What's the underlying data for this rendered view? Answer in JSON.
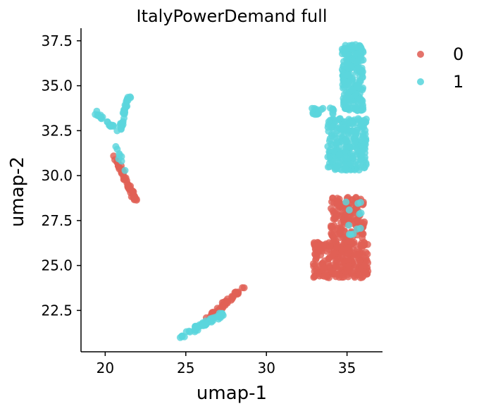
{
  "chart_data": {
    "type": "scatter",
    "title": "ItalyPowerDemand full",
    "xlabel": "umap-1",
    "ylabel": "umap-2",
    "xlim": [
      18.5,
      37.2
    ],
    "ylim": [
      20.2,
      38.2
    ],
    "x_ticks": [
      20,
      25,
      30,
      35
    ],
    "y_ticks": [
      22.5,
      25.0,
      27.5,
      30.0,
      32.5,
      35.0,
      37.5
    ],
    "x_tick_labels": [
      "20",
      "25",
      "30",
      "35"
    ],
    "y_tick_labels": [
      "22.5",
      "25.0",
      "27.5",
      "30.0",
      "32.5",
      "35.0",
      "37.5"
    ],
    "grid": false,
    "legend_position": "top-right",
    "series": [
      {
        "name": "0",
        "color": "#e06056",
        "clusters": [
          {
            "label": "left-strand",
            "x": [
              20.6,
              21.9
            ],
            "y": [
              28.6,
              31.0
            ],
            "count": 60
          },
          {
            "label": "bottom-diagonal",
            "x": [
              26.3,
              28.6
            ],
            "y": [
              22.0,
              23.8
            ],
            "count": 45
          },
          {
            "label": "right-upper-block",
            "x": [
              34.0,
              36.1
            ],
            "y": [
              26.3,
              28.8
            ],
            "count": 150
          },
          {
            "label": "right-lower-block",
            "x": [
              32.9,
              36.3
            ],
            "y": [
              24.3,
              26.3
            ],
            "count": 260
          }
        ]
      },
      {
        "name": "1",
        "color": "#5bd6dd",
        "clusters": [
          {
            "label": "left-top-arc",
            "x": [
              19.4,
              21.5
            ],
            "y": [
              32.4,
              34.4
            ],
            "count": 55
          },
          {
            "label": "left-strand-overlap",
            "x": [
              20.5,
              21.2
            ],
            "y": [
              30.3,
              32.2
            ],
            "count": 8
          },
          {
            "label": "bottom-diagonal",
            "x": [
              24.6,
              27.3
            ],
            "y": [
              21.0,
              22.3
            ],
            "count": 55
          },
          {
            "label": "right-top-column",
            "x": [
              34.7,
              36.0
            ],
            "y": [
              33.6,
              37.3
            ],
            "count": 220
          },
          {
            "label": "right-middle-block",
            "x": [
              33.8,
              36.2
            ],
            "y": [
              30.3,
              33.2
            ],
            "count": 260
          },
          {
            "label": "right-branch",
            "x": [
              32.8,
              34.2
            ],
            "y": [
              33.4,
              33.8
            ],
            "count": 20
          },
          {
            "label": "right-overlap",
            "x": [
              34.9,
              35.9
            ],
            "y": [
              26.7,
              28.6
            ],
            "count": 12
          }
        ]
      }
    ]
  }
}
